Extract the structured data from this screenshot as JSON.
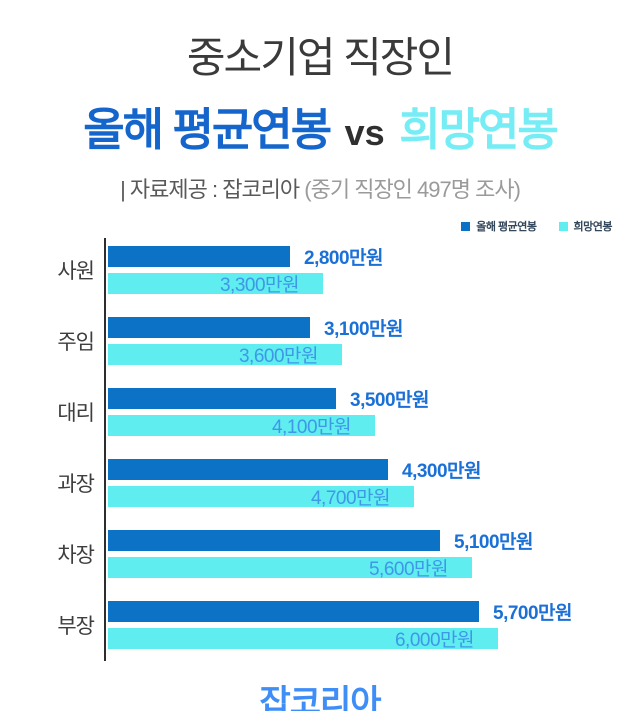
{
  "header": {
    "title_line1": "중소기업 직장인",
    "title_line2": {
      "part1": "올해 평균연봉",
      "vs": "vs",
      "part2": "희망연봉"
    },
    "subtitle": {
      "source": "| 자료제공 : 잡코리아 ",
      "note": "(중기 직장인 497명 조사)"
    }
  },
  "legend": [
    {
      "label": "올해 평균연봉",
      "color": "#0b72c6"
    },
    {
      "label": "희망연봉",
      "color": "#5fedf0"
    }
  ],
  "colors": {
    "bar_average": "#0b72c6",
    "bar_desired": "#5fedf0",
    "label_average": "#1a70d6",
    "label_desired": "#3f97e8",
    "title_average": "#1566cc",
    "title_desired": "#76ecf4",
    "title_vs": "#2f2f2f",
    "brand_blue": "#3f8df7"
  },
  "chart_data": {
    "type": "bar",
    "orientation": "horizontal",
    "title": "중소기업 직장인 올해 평균연봉 vs 희망연봉",
    "unit": "만원",
    "categories": [
      "사원",
      "주임",
      "대리",
      "과장",
      "차장",
      "부장"
    ],
    "series": [
      {
        "name": "올해 평균연봉",
        "color": "#0b72c6",
        "values": [
          2800,
          3100,
          3500,
          4300,
          5100,
          5700
        ],
        "labels": [
          "2,800만원",
          "3,100만원",
          "3,500만원",
          "4,300만원",
          "5,100만원",
          "5,700만원"
        ]
      },
      {
        "name": "희망연봉",
        "color": "#5fedf0",
        "values": [
          3300,
          3600,
          4100,
          4700,
          5600,
          6000
        ],
        "labels": [
          "3,300만원",
          "3,600만원",
          "4,100만원",
          "4,700만원",
          "5,600만원",
          "6,000만원"
        ]
      }
    ],
    "xlim": [
      0,
      6000
    ],
    "grid": false,
    "legend_position": "top-right",
    "value_labels": "shown"
  },
  "footer": {
    "brand": "잡코리아"
  }
}
